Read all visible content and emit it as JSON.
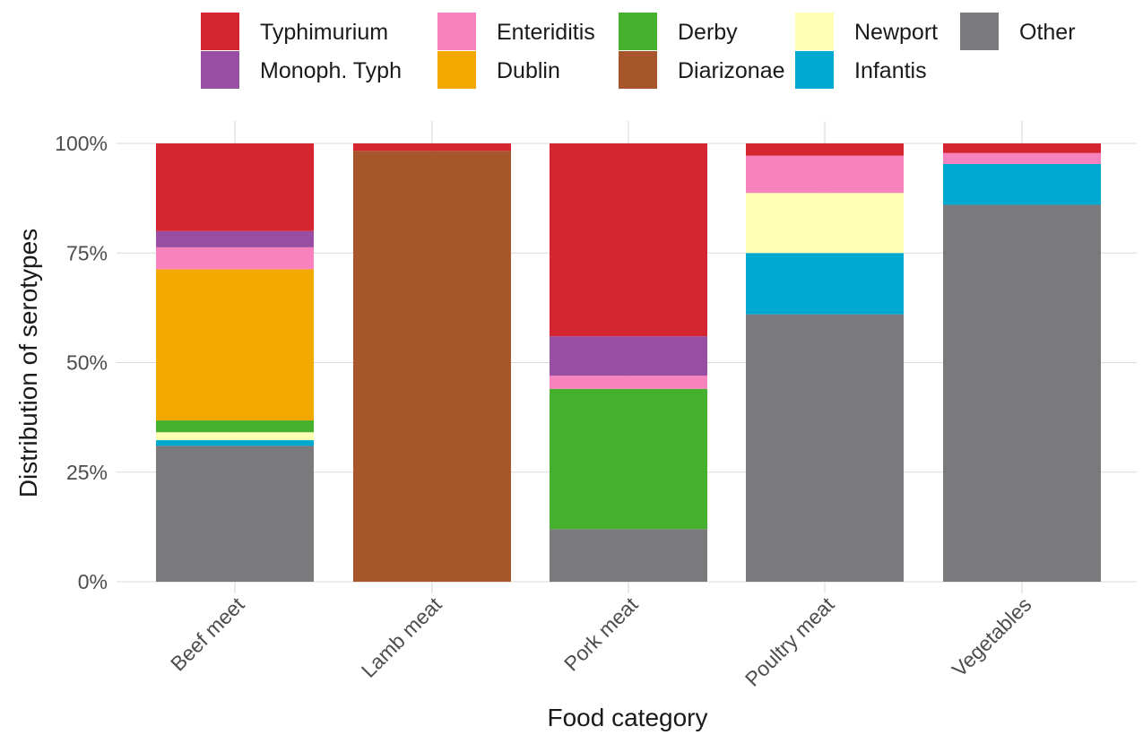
{
  "chart_data": {
    "type": "bar",
    "stacked": true,
    "percent": true,
    "xlabel": "Food category",
    "ylabel": "Distribution of serotypes",
    "ylim": [
      0,
      1
    ],
    "yticks": [
      0,
      0.25,
      0.5,
      0.75,
      1.0
    ],
    "ytick_labels": [
      "0%",
      "25%",
      "50%",
      "75%",
      "100%"
    ],
    "grid": true,
    "legend_position": "top",
    "categories": [
      "Beef meet",
      "Lamb meat",
      "Pork meat",
      "Poultry meat",
      "Vegetables"
    ],
    "series": [
      {
        "name": "Other",
        "color": "#7a7a7c",
        "values": [
          0.31,
          0.0,
          0.12,
          0.61,
          0.86
        ]
      },
      {
        "name": "Infantis",
        "color": "#00a9cf",
        "values": [
          0.013,
          0.0,
          0.0,
          0.14,
          0.093
        ]
      },
      {
        "name": "Newport",
        "color": "#ffffb4",
        "values": [
          0.018,
          0.0,
          0.0,
          0.137,
          0.0
        ]
      },
      {
        "name": "Diarizonae",
        "color": "#a6562a",
        "values": [
          0.0,
          0.983,
          0.0,
          0.0,
          0.0
        ]
      },
      {
        "name": "Derby",
        "color": "#45b02e",
        "values": [
          0.027,
          0.0,
          0.32,
          0.0,
          0.0
        ]
      },
      {
        "name": "Dublin",
        "color": "#f3a800",
        "values": [
          0.345,
          0.0,
          0.0,
          0.0,
          0.0
        ]
      },
      {
        "name": "Enteriditis",
        "color": "#f782bd",
        "values": [
          0.05,
          0.0,
          0.03,
          0.085,
          0.025
        ]
      },
      {
        "name": "Monoph. Typh",
        "color": "#984ea3",
        "values": [
          0.037,
          0.0,
          0.09,
          0.0,
          0.0
        ]
      },
      {
        "name": "Typhimurium",
        "color": "#d52531",
        "values": [
          0.2,
          0.017,
          0.44,
          0.028,
          0.022
        ]
      }
    ],
    "legend": [
      {
        "name": "Typhimurium",
        "color": "#d52531"
      },
      {
        "name": "Monoph. Typh",
        "color": "#984ea3"
      },
      {
        "name": "Enteriditis",
        "color": "#f782bd"
      },
      {
        "name": "Dublin",
        "color": "#f3a800"
      },
      {
        "name": "Derby",
        "color": "#45b02e"
      },
      {
        "name": "Diarizonae",
        "color": "#a6562a"
      },
      {
        "name": "Newport",
        "color": "#ffffb4"
      },
      {
        "name": "Infantis",
        "color": "#00a9cf"
      },
      {
        "name": "Other",
        "color": "#7a7a7c"
      }
    ]
  }
}
